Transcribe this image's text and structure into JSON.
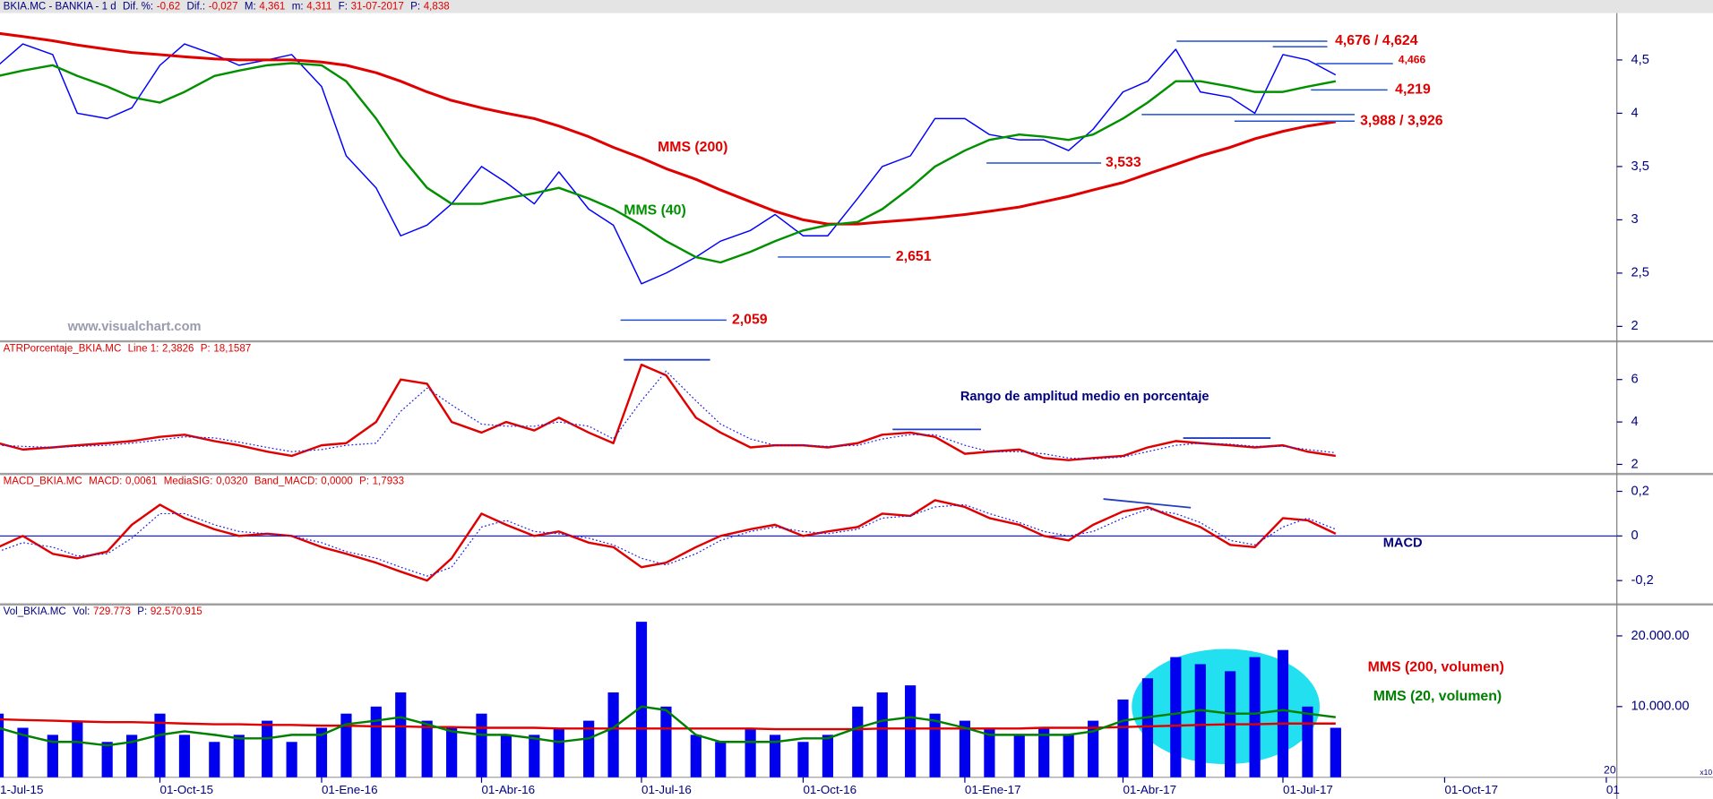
{
  "chart_data": [
    {
      "type": "line",
      "header": {
        "title": "BKIA.MC - BANKIA - 1 d",
        "color": "#000080",
        "value_color": "#e00000",
        "fields": [
          {
            "label": "Dif. %:",
            "value": "-0,62"
          },
          {
            "label": "Dif.:",
            "value": "-0,027"
          },
          {
            "label": "M:",
            "value": "4,361"
          },
          {
            "label": "m:",
            "value": "4,311"
          },
          {
            "label": "F:",
            "value": "31-07-2017"
          },
          {
            "label": "P:",
            "value": "4,838"
          }
        ]
      },
      "x": [
        "2015-07-01",
        "2015-07-15",
        "2015-08-01",
        "2015-08-15",
        "2015-09-01",
        "2015-09-15",
        "2015-10-01",
        "2015-10-15",
        "2015-11-01",
        "2015-11-15",
        "2015-12-01",
        "2015-12-15",
        "2016-01-01",
        "2016-01-15",
        "2016-02-01",
        "2016-02-15",
        "2016-03-01",
        "2016-03-15",
        "2016-04-01",
        "2016-04-15",
        "2016-05-01",
        "2016-05-15",
        "2016-06-01",
        "2016-06-15",
        "2016-07-01",
        "2016-07-15",
        "2016-08-01",
        "2016-08-15",
        "2016-09-01",
        "2016-09-15",
        "2016-10-01",
        "2016-10-15",
        "2016-11-01",
        "2016-11-15",
        "2016-12-01",
        "2016-12-15",
        "2017-01-01",
        "2017-01-15",
        "2017-02-01",
        "2017-02-15",
        "2017-03-01",
        "2017-03-15",
        "2017-04-01",
        "2017-04-15",
        "2017-05-01",
        "2017-05-15",
        "2017-06-01",
        "2017-06-15",
        "2017-07-01",
        "2017-07-15",
        "2017-07-31"
      ],
      "values": [
        4.45,
        4.65,
        4.55,
        4.0,
        3.95,
        4.05,
        4.45,
        4.65,
        4.55,
        4.45,
        4.5,
        4.55,
        4.25,
        3.6,
        3.3,
        2.85,
        2.95,
        3.15,
        3.5,
        3.35,
        3.15,
        3.45,
        3.1,
        2.95,
        2.4,
        2.5,
        2.65,
        2.8,
        2.9,
        3.05,
        2.85,
        2.85,
        3.2,
        3.5,
        3.6,
        3.95,
        3.95,
        3.8,
        3.75,
        3.75,
        3.65,
        3.85,
        4.2,
        4.3,
        4.6,
        4.2,
        4.15,
        4.0,
        4.55,
        4.5,
        4.36
      ],
      "color": "#0000ff",
      "series": [
        {
          "name": "MMS (200)",
          "color": "#e00000",
          "values": [
            4.75,
            4.72,
            4.68,
            4.64,
            4.6,
            4.57,
            4.55,
            4.53,
            4.51,
            4.5,
            4.5,
            4.5,
            4.48,
            4.45,
            4.38,
            4.3,
            4.2,
            4.12,
            4.05,
            4.0,
            3.95,
            3.88,
            3.78,
            3.68,
            3.58,
            3.48,
            3.38,
            3.28,
            3.17,
            3.08,
            3.0,
            2.96,
            2.96,
            2.98,
            3.0,
            3.02,
            3.05,
            3.08,
            3.12,
            3.17,
            3.22,
            3.28,
            3.35,
            3.43,
            3.52,
            3.6,
            3.68,
            3.76,
            3.83,
            3.88,
            3.92
          ]
        },
        {
          "name": "MMS (40)",
          "color": "#009000",
          "values": [
            4.35,
            4.4,
            4.45,
            4.35,
            4.25,
            4.15,
            4.1,
            4.2,
            4.35,
            4.4,
            4.45,
            4.47,
            4.45,
            4.3,
            3.95,
            3.6,
            3.3,
            3.15,
            3.15,
            3.2,
            3.25,
            3.3,
            3.2,
            3.1,
            2.95,
            2.8,
            2.65,
            2.6,
            2.7,
            2.8,
            2.9,
            2.95,
            2.98,
            3.1,
            3.3,
            3.5,
            3.65,
            3.75,
            3.8,
            3.78,
            3.75,
            3.8,
            3.95,
            4.1,
            4.3,
            4.3,
            4.25,
            4.2,
            4.2,
            4.25,
            4.3
          ]
        }
      ],
      "annotations": [
        {
          "label": "4,676 / 4,624",
          "values": [
            4.676,
            4.624
          ]
        },
        {
          "label": "4,466",
          "values": [
            4.466
          ]
        },
        {
          "label": "4,219",
          "values": [
            4.219
          ]
        },
        {
          "label": "3,988 / 3,926",
          "values": [
            3.988,
            3.926
          ]
        },
        {
          "label": "3,533",
          "values": [
            3.533
          ]
        },
        {
          "label": "2,651",
          "values": [
            2.651
          ]
        },
        {
          "label": "2,059",
          "values": [
            2.059
          ]
        }
      ],
      "watermark": "www.visualchart.com",
      "xlim": [
        "2015-07-02",
        "2018-01-07"
      ],
      "ylim": [
        1.87,
        4.94
      ],
      "yticks": [
        2,
        {
          "value": 2.5,
          "label": "2,5"
        },
        3,
        {
          "value": 3.5,
          "label": "3,5"
        },
        4,
        {
          "value": 4.5,
          "label": "4,5"
        }
      ]
    },
    {
      "type": "line",
      "header": {
        "title": "ATRPorcentaje_BKIA.MC",
        "color": "#e00000",
        "value_color": "#e00000",
        "fields": [
          {
            "label": "Line 1:",
            "value": "2,3826"
          },
          {
            "label": "P:",
            "value": "18,1587"
          }
        ]
      },
      "x": [
        "2015-07-01",
        "2015-07-15",
        "2015-08-01",
        "2015-08-15",
        "2015-09-01",
        "2015-09-15",
        "2015-10-01",
        "2015-10-15",
        "2015-11-01",
        "2015-11-15",
        "2015-12-01",
        "2015-12-15",
        "2016-01-01",
        "2016-01-15",
        "2016-02-01",
        "2016-02-15",
        "2016-03-01",
        "2016-03-15",
        "2016-04-01",
        "2016-04-15",
        "2016-05-01",
        "2016-05-15",
        "2016-06-01",
        "2016-06-15",
        "2016-07-01",
        "2016-07-15",
        "2016-08-01",
        "2016-08-15",
        "2016-09-01",
        "2016-09-15",
        "2016-10-01",
        "2016-10-15",
        "2016-11-01",
        "2016-11-15",
        "2016-12-01",
        "2016-12-15",
        "2017-01-01",
        "2017-01-15",
        "2017-02-01",
        "2017-02-15",
        "2017-03-01",
        "2017-03-15",
        "2017-04-01",
        "2017-04-15",
        "2017-05-01",
        "2017-05-15",
        "2017-06-01",
        "2017-06-15",
        "2017-07-01",
        "2017-07-15",
        "2017-07-31"
      ],
      "series": [
        {
          "color": "#e00000",
          "values": [
            3.0,
            2.7,
            2.8,
            2.9,
            3.0,
            3.1,
            3.3,
            3.4,
            3.1,
            2.9,
            2.6,
            2.4,
            2.9,
            3.0,
            4.0,
            6.0,
            5.8,
            4.0,
            3.5,
            4.0,
            3.6,
            4.2,
            3.5,
            3.0,
            6.7,
            6.2,
            4.2,
            3.5,
            2.8,
            2.9,
            2.9,
            2.8,
            3.0,
            3.4,
            3.5,
            3.3,
            2.5,
            2.6,
            2.7,
            2.3,
            2.2,
            2.3,
            2.4,
            2.8,
            3.1,
            3.0,
            2.9,
            2.8,
            2.9,
            2.6,
            2.4
          ]
        },
        {
          "color": "#2020e0",
          "style": "dotted",
          "values": [
            2.9,
            2.85,
            2.8,
            2.85,
            2.9,
            3.0,
            3.15,
            3.3,
            3.25,
            3.05,
            2.8,
            2.6,
            2.7,
            2.9,
            3.0,
            4.5,
            5.6,
            4.8,
            3.9,
            3.8,
            3.8,
            4.0,
            3.8,
            3.2,
            5.0,
            6.4,
            5.0,
            3.9,
            3.2,
            2.9,
            2.9,
            2.85,
            2.9,
            3.2,
            3.4,
            3.4,
            2.9,
            2.6,
            2.6,
            2.5,
            2.3,
            2.25,
            2.35,
            2.6,
            2.9,
            3.0,
            2.95,
            2.85,
            2.85,
            2.7,
            2.55
          ]
        }
      ],
      "note": "Rango de amplitud medio en porcentaje",
      "xlim": [
        "2015-07-02",
        "2018-01-07"
      ],
      "ylim": [
        1.6,
        7.75
      ],
      "yticks": [
        2,
        4,
        6
      ]
    },
    {
      "type": "line",
      "header": {
        "title": "MACD_BKIA.MC",
        "color": "#e00000",
        "value_color": "#e00000",
        "fields": [
          {
            "label": "MACD:",
            "value": "0,0061"
          },
          {
            "label": "MediaSIG:",
            "value": "0,0320"
          },
          {
            "label": "Band_MACD:",
            "value": "0,0000"
          },
          {
            "label": "P:",
            "value": "1,7933"
          }
        ]
      },
      "x": [
        "2015-07-01",
        "2015-07-15",
        "2015-08-01",
        "2015-08-15",
        "2015-09-01",
        "2015-09-15",
        "2015-10-01",
        "2015-10-15",
        "2015-11-01",
        "2015-11-15",
        "2015-12-01",
        "2015-12-15",
        "2016-01-01",
        "2016-01-15",
        "2016-02-01",
        "2016-02-15",
        "2016-03-01",
        "2016-03-15",
        "2016-04-01",
        "2016-04-15",
        "2016-05-01",
        "2016-05-15",
        "2016-06-01",
        "2016-06-15",
        "2016-07-01",
        "2016-07-15",
        "2016-08-01",
        "2016-08-15",
        "2016-09-01",
        "2016-09-15",
        "2016-10-01",
        "2016-10-15",
        "2016-11-01",
        "2016-11-15",
        "2016-12-01",
        "2016-12-15",
        "2017-01-01",
        "2017-01-15",
        "2017-02-01",
        "2017-02-15",
        "2017-03-01",
        "2017-03-15",
        "2017-04-01",
        "2017-04-15",
        "2017-05-01",
        "2017-05-15",
        "2017-06-01",
        "2017-06-15",
        "2017-07-01",
        "2017-07-15",
        "2017-07-31"
      ],
      "series": [
        {
          "color": "#e00000",
          "values": [
            -0.05,
            0.0,
            -0.08,
            -0.1,
            -0.07,
            0.05,
            0.14,
            0.08,
            0.03,
            0.0,
            0.01,
            0.0,
            -0.05,
            -0.08,
            -0.12,
            -0.16,
            -0.2,
            -0.1,
            0.1,
            0.05,
            0.0,
            0.02,
            -0.03,
            -0.05,
            -0.14,
            -0.12,
            -0.05,
            0.0,
            0.03,
            0.05,
            0.0,
            0.02,
            0.04,
            0.1,
            0.09,
            0.16,
            0.13,
            0.08,
            0.05,
            0.0,
            -0.02,
            0.05,
            0.11,
            0.13,
            0.08,
            0.04,
            -0.04,
            -0.05,
            0.08,
            0.07,
            0.01
          ]
        },
        {
          "color": "#2020e0",
          "style": "dotted",
          "values": [
            -0.07,
            -0.03,
            -0.05,
            -0.09,
            -0.08,
            -0.01,
            0.1,
            0.1,
            0.05,
            0.02,
            0.01,
            0.0,
            -0.03,
            -0.07,
            -0.1,
            -0.14,
            -0.18,
            -0.14,
            0.04,
            0.07,
            0.02,
            0.01,
            -0.01,
            -0.04,
            -0.1,
            -0.13,
            -0.08,
            -0.02,
            0.02,
            0.04,
            0.02,
            0.01,
            0.03,
            0.08,
            0.09,
            0.13,
            0.14,
            0.1,
            0.06,
            0.02,
            0.0,
            0.02,
            0.08,
            0.12,
            0.1,
            0.06,
            -0.02,
            -0.04,
            0.04,
            0.08,
            0.03
          ]
        }
      ],
      "zero_line": true,
      "note": "MACD",
      "xlim": [
        "2015-07-02",
        "2018-01-07"
      ],
      "ylim": [
        -0.302,
        0.273
      ],
      "yticks": [
        {
          "value": 0.2,
          "label": "0,2"
        },
        0,
        {
          "value": -0.2,
          "label": "-0,2"
        }
      ]
    },
    {
      "type": "bar",
      "header": {
        "title": "Vol_BKIA.MC",
        "color": "#000080",
        "value_color": "#e00000",
        "fields": [
          {
            "label": "Vol:",
            "value": "729.773"
          },
          {
            "label": "P:",
            "value": "92.570.915"
          }
        ]
      },
      "x": [
        "2015-07-01",
        "2015-07-15",
        "2015-08-01",
        "2015-08-15",
        "2015-09-01",
        "2015-09-15",
        "2015-10-01",
        "2015-10-15",
        "2015-11-01",
        "2015-11-15",
        "2015-12-01",
        "2015-12-15",
        "2016-01-01",
        "2016-01-15",
        "2016-02-01",
        "2016-02-15",
        "2016-03-01",
        "2016-03-15",
        "2016-04-01",
        "2016-04-15",
        "2016-05-01",
        "2016-05-15",
        "2016-06-01",
        "2016-06-15",
        "2016-07-01",
        "2016-07-15",
        "2016-08-01",
        "2016-08-15",
        "2016-09-01",
        "2016-09-15",
        "2016-10-01",
        "2016-10-15",
        "2016-11-01",
        "2016-11-15",
        "2016-12-01",
        "2016-12-15",
        "2017-01-01",
        "2017-01-15",
        "2017-02-01",
        "2017-02-15",
        "2017-03-01",
        "2017-03-15",
        "2017-04-01",
        "2017-04-15",
        "2017-05-01",
        "2017-05-15",
        "2017-06-01",
        "2017-06-15",
        "2017-07-01",
        "2017-07-15",
        "2017-07-31"
      ],
      "values": [
        9000000,
        7000000,
        6000000,
        8000000,
        5000000,
        6000000,
        9000000,
        6000000,
        5000000,
        6000000,
        8000000,
        5000000,
        7000000,
        9000000,
        10000000,
        12000000,
        8000000,
        7000000,
        9000000,
        6000000,
        6000000,
        7000000,
        8000000,
        12000000,
        22000000,
        10000000,
        6000000,
        5000000,
        7000000,
        6000000,
        5000000,
        6000000,
        10000000,
        12000000,
        13000000,
        9000000,
        8000000,
        7000000,
        6000000,
        7000000,
        6000000,
        8000000,
        11000000,
        14000000,
        17000000,
        16000000,
        15000000,
        17000000,
        18000000,
        10000000,
        7000000
      ],
      "color": "#0000ee",
      "series": [
        {
          "name": "MMS (200, volumen)",
          "color": "#e00000",
          "values": [
            8200000,
            8100000,
            8000000,
            7900000,
            7800000,
            7800000,
            7700000,
            7600000,
            7500000,
            7500000,
            7400000,
            7400000,
            7300000,
            7300000,
            7200000,
            7200000,
            7100000,
            7100000,
            7000000,
            7000000,
            7000000,
            6900000,
            6900000,
            6900000,
            6900000,
            6900000,
            6900000,
            6900000,
            6900000,
            6800000,
            6800000,
            6800000,
            6800000,
            6900000,
            6900000,
            6900000,
            6900000,
            6900000,
            6900000,
            7000000,
            7000000,
            7000000,
            7100000,
            7200000,
            7300000,
            7400000,
            7500000,
            7500000,
            7600000,
            7600000,
            7600000
          ]
        },
        {
          "name": "MMS (20, volumen)",
          "color": "#008000",
          "values": [
            7000000,
            6000000,
            5000000,
            5000000,
            4500000,
            5000000,
            6000000,
            6500000,
            6000000,
            5500000,
            5500000,
            6000000,
            6000000,
            7500000,
            8000000,
            8500000,
            7500000,
            6500000,
            6000000,
            6000000,
            5500000,
            5000000,
            5500000,
            7000000,
            10000000,
            9500000,
            6000000,
            5000000,
            5000000,
            5000000,
            5500000,
            5500000,
            7000000,
            8000000,
            8500000,
            8000000,
            7000000,
            6000000,
            6000000,
            6000000,
            6000000,
            6500000,
            8000000,
            8500000,
            9000000,
            9500000,
            9000000,
            9000000,
            9500000,
            9000000,
            8500000
          ]
        }
      ],
      "markers": [
        "20",
        "x10"
      ],
      "xlim": [
        "2015-07-02",
        "2018-01-07"
      ],
      "ylim": [
        0,
        24300000
      ],
      "yticks": [
        {
          "value": 10000000,
          "label": "10.000.00"
        },
        {
          "value": 20000000,
          "label": "20.000.00"
        }
      ],
      "xticks": [
        {
          "value": "2015-07-01",
          "label": "1-Jul-15"
        },
        {
          "value": "2015-10-01",
          "label": "01-Oct-15"
        },
        {
          "value": "2016-01-01",
          "label": "01-Ene-16"
        },
        {
          "value": "2016-04-01",
          "label": "01-Abr-16"
        },
        {
          "value": "2016-07-01",
          "label": "01-Jul-16"
        },
        {
          "value": "2016-10-01",
          "label": "01-Oct-16"
        },
        {
          "value": "2017-01-01",
          "label": "01-Ene-17"
        },
        {
          "value": "2017-04-01",
          "label": "01-Abr-17"
        },
        {
          "value": "2017-07-01",
          "label": "01-Jul-17"
        },
        {
          "value": "2017-10-01",
          "label": "01-Oct-17"
        },
        {
          "value": "2018-01-01",
          "label": "01"
        }
      ]
    }
  ]
}
